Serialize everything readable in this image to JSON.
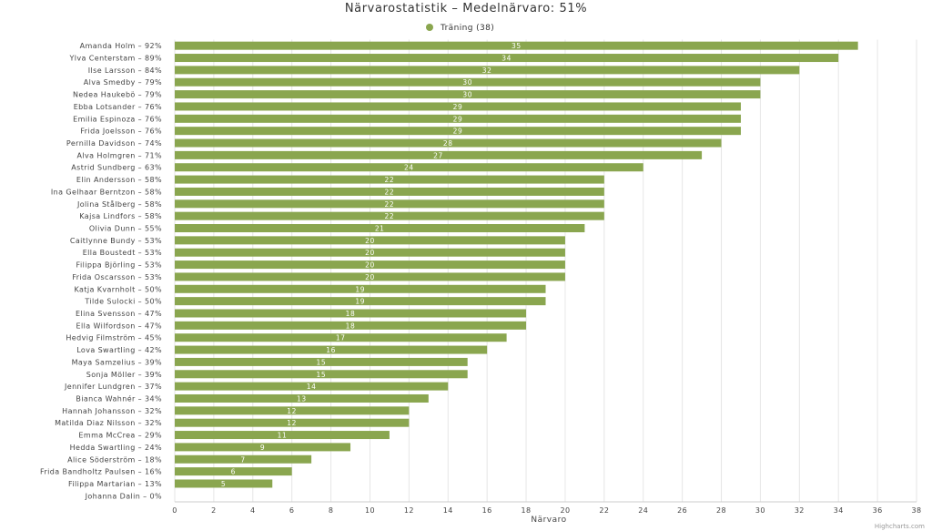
{
  "chart_data": {
    "type": "bar",
    "orientation": "horizontal",
    "title": "Närvarostatistik – Medelnärvaro: 51%",
    "xlabel": "Närvaro",
    "categories": [
      "Amanda Holm – 92%",
      "Ylva Centerstam – 89%",
      "Ilse Larsson – 84%",
      "Alva Smedby – 79%",
      "Nedea Haukebö – 79%",
      "Ebba Lotsander – 76%",
      "Emilia Espinoza – 76%",
      "Frida Joelsson – 76%",
      "Pernilla Davidson – 74%",
      "Alva Holmgren – 71%",
      "Astrid Sundberg – 63%",
      "Elin Andersson – 58%",
      "Ina Gelhaar Berntzon – 58%",
      "Jolina Stålberg – 58%",
      "Kajsa Lindfors – 58%",
      "Olivia Dunn – 55%",
      "Caitlynne Bundy – 53%",
      "Ella Boustedt – 53%",
      "Filippa Björling – 53%",
      "Frida Oscarsson – 53%",
      "Katja Kvarnholt – 50%",
      "Tilde Sulocki – 50%",
      "Elina Svensson – 47%",
      "Ella Wilfordson – 47%",
      "Hedvig Filmström – 45%",
      "Lova Swartling – 42%",
      "Maya Samzelius – 39%",
      "Sonja Möller – 39%",
      "Jennifer Lundgren – 37%",
      "Bianca Wahnér – 34%",
      "Hannah Johansson – 32%",
      "Matilda Diaz Nilsson – 32%",
      "Emma McCrea – 29%",
      "Hedda Swartling – 24%",
      "Alice Söderström – 18%",
      "Frida Bandholtz Paulsen – 16%",
      "Filippa Martarian – 13%",
      "Johanna Dalin – 0%"
    ],
    "series": [
      {
        "name": "Träning (38)",
        "color": "#8aa64f",
        "values": [
          35,
          34,
          32,
          30,
          30,
          29,
          29,
          29,
          28,
          27,
          24,
          22,
          22,
          22,
          22,
          21,
          20,
          20,
          20,
          20,
          19,
          19,
          18,
          18,
          17,
          16,
          15,
          15,
          14,
          13,
          12,
          12,
          11,
          9,
          7,
          6,
          5,
          0
        ]
      }
    ],
    "xlim": [
      0,
      38
    ],
    "xticks": [
      0,
      2,
      4,
      6,
      8,
      10,
      12,
      14,
      16,
      18,
      20,
      22,
      24,
      26,
      28,
      30,
      32,
      34,
      36,
      38
    ],
    "grid": true,
    "legend": "top-center",
    "credits": "Highcharts.com"
  }
}
